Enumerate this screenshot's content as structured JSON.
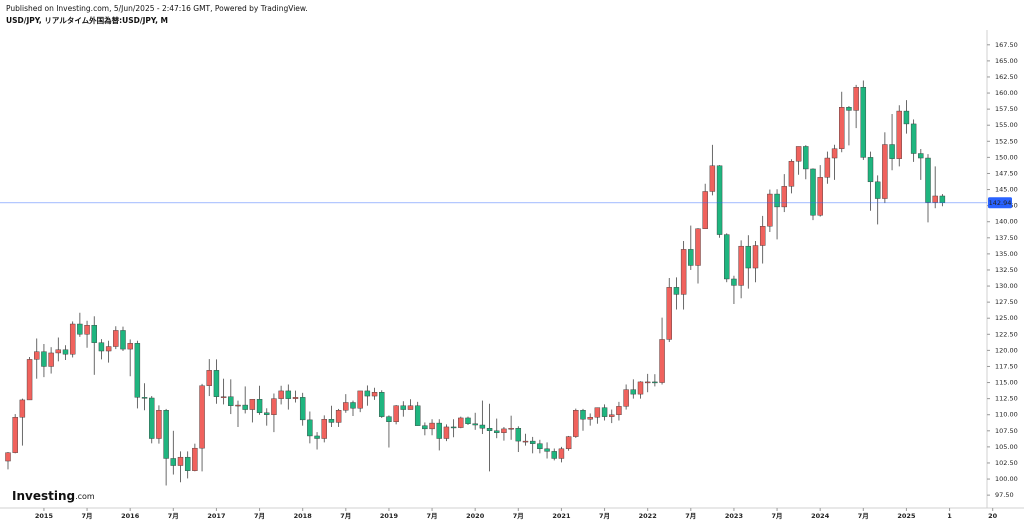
{
  "chart_data": {
    "type": "candlestick",
    "published": "Published on Investing.com, 5/Jun/2025 - 2:47:16 GMT, Powered by TradingView.",
    "title": "USD/JPY, リアルタイム外国為替:USD/JPY, M",
    "logo": "Investing",
    "logo_suffix": ".com",
    "up_color": "#f0625d",
    "down_color": "#1fb57f",
    "wick_color": "#444444",
    "price_line": 142.94,
    "price_line_color": "#2962ff",
    "open": [
      102.8,
      104.1,
      109.6,
      112.3,
      118.6,
      119.8,
      117.5,
      119.6,
      120.1,
      119.4,
      124.1,
      122.5,
      123.9,
      121.2,
      119.9,
      120.6,
      123.1,
      120.2,
      121.1,
      112.7,
      112.6,
      106.3,
      110.7,
      103.2,
      102.1,
      103.4,
      101.3,
      104.8,
      114.5,
      116.9,
      112.8,
      112.8,
      111.4,
      111.5,
      110.8,
      112.4,
      110.3,
      110.0,
      112.5,
      113.7,
      112.5,
      112.7,
      109.2,
      106.7,
      106.3,
      109.3,
      108.8,
      110.7,
      111.9,
      111.0,
      113.7,
      112.9,
      113.5,
      109.7,
      108.9,
      111.4,
      110.8,
      111.4,
      108.3,
      107.8,
      108.7,
      106.3,
      108.1,
      108.0,
      109.5,
      108.6,
      108.4,
      107.9,
      107.5,
      107.2,
      107.8,
      107.9,
      105.9,
      105.9,
      105.5,
      104.7,
      104.3,
      103.2,
      104.7,
      106.6,
      110.7,
      109.3,
      109.6,
      111.1,
      109.7,
      110.0,
      111.3,
      113.9,
      113.2,
      115.1,
      115.1,
      115.0,
      121.7,
      129.8,
      128.7,
      135.7,
      133.2,
      138.9,
      144.7,
      148.7,
      138.0,
      131.1,
      130.1,
      136.2,
      132.8,
      136.3,
      139.3,
      144.3,
      142.3,
      145.5,
      149.4,
      151.7,
      148.2,
      141.0,
      146.9,
      149.9,
      151.35,
      157.8,
      157.3,
      160.9,
      150.0,
      146.2,
      143.6,
      152.0,
      149.8,
      157.2,
      155.2,
      150.6,
      149.9,
      143.0,
      144.0
    ],
    "high": [
      104.2,
      110.1,
      112.5,
      118.98,
      121.85,
      121.0,
      120.5,
      122.0,
      120.8,
      124.5,
      125.85,
      124.6,
      125.3,
      121.75,
      121.5,
      123.75,
      123.7,
      121.7,
      121.5,
      114.9,
      112.9,
      111.45,
      110.9,
      107.5,
      104.3,
      104.3,
      105.5,
      114.8,
      118.65,
      118.6,
      115.6,
      115.5,
      112.2,
      114.4,
      112.4,
      114.5,
      111.0,
      113.3,
      114.5,
      114.7,
      113.75,
      113.4,
      110.5,
      107.3,
      109.9,
      111.4,
      110.9,
      113.2,
      112.2,
      113.7,
      114.55,
      114.2,
      113.8,
      109.9,
      111.5,
      112.1,
      112.4,
      112.0,
      108.8,
      109.3,
      109.3,
      108.5,
      109.3,
      109.7,
      109.7,
      110.3,
      112.2,
      111.7,
      109.4,
      108.1,
      109.85,
      108.2,
      107.05,
      106.55,
      106.1,
      105.7,
      104.75,
      105.0,
      106.7,
      110.95,
      110.9,
      110.2,
      111.1,
      111.6,
      110.8,
      112.0,
      114.7,
      115.5,
      115.2,
      116.35,
      116.3,
      125.1,
      131.25,
      131.35,
      137.0,
      139.4,
      139.0,
      145.9,
      151.95,
      148.8,
      138.2,
      131.6,
      137.1,
      137.9,
      137.0,
      140.9,
      145.0,
      145.05,
      147.4,
      149.7,
      151.7,
      151.9,
      148.3,
      148.8,
      150.9,
      151.97,
      160.2,
      157.99,
      161.27,
      161.95,
      150.9,
      147.2,
      153.9,
      156.75,
      158.1,
      158.9,
      155.9,
      151.3,
      150.5,
      148.6,
      144.3
    ],
    "low": [
      101.5,
      104.0,
      105.2,
      112.3,
      115.6,
      115.85,
      116.4,
      118.3,
      118.5,
      118.9,
      122.1,
      120.4,
      116.2,
      118.6,
      118.1,
      120.2,
      119.9,
      115.98,
      110.98,
      110.7,
      105.55,
      105.5,
      99.0,
      100.7,
      99.5,
      100.1,
      101.2,
      101.2,
      112.9,
      111.7,
      111.6,
      110.1,
      108.1,
      110.2,
      108.8,
      110.0,
      108.3,
      107.3,
      111.6,
      110.8,
      111.9,
      108.3,
      105.55,
      104.6,
      105.7,
      108.1,
      108.1,
      110.3,
      109.8,
      110.4,
      111.4,
      112.3,
      109.5,
      104.9,
      108.5,
      109.7,
      110.8,
      108.3,
      106.8,
      106.8,
      104.45,
      105.9,
      106.5,
      107.9,
      108.4,
      107.65,
      107.0,
      101.2,
      106.35,
      105.98,
      106.1,
      104.2,
      105.2,
      104.0,
      104.0,
      103.2,
      102.9,
      102.6,
      104.4,
      106.4,
      107.5,
      108.3,
      108.6,
      109.1,
      108.7,
      109.1,
      110.8,
      112.5,
      112.5,
      113.5,
      114.4,
      114.7,
      121.3,
      126.35,
      126.35,
      132.5,
      130.4,
      138.9,
      144.1,
      137.5,
      130.6,
      127.2,
      128.1,
      129.6,
      130.6,
      133.5,
      138.4,
      137.25,
      141.5,
      144.4,
      147.3,
      146.6,
      140.25,
      140.8,
      145.9,
      146.5,
      150.8,
      151.86,
      154.55,
      149.6,
      141.7,
      139.58,
      142.9,
      148.0,
      148.6,
      153.7,
      149.3,
      146.5,
      139.9,
      142.1,
      142.4
    ],
    "close": [
      104.1,
      109.6,
      112.3,
      118.6,
      119.8,
      117.5,
      119.6,
      120.1,
      119.4,
      124.1,
      122.5,
      123.9,
      121.2,
      119.9,
      120.6,
      123.1,
      120.2,
      121.1,
      112.7,
      112.6,
      106.3,
      110.7,
      103.2,
      102.1,
      103.4,
      101.3,
      104.8,
      114.5,
      116.9,
      112.8,
      112.8,
      111.4,
      111.5,
      110.8,
      112.4,
      110.3,
      110.0,
      112.5,
      113.7,
      112.5,
      112.7,
      109.2,
      106.7,
      106.3,
      109.3,
      108.8,
      110.7,
      111.9,
      111.0,
      113.7,
      112.9,
      113.5,
      109.7,
      108.9,
      111.4,
      110.8,
      111.4,
      108.3,
      107.8,
      108.7,
      106.3,
      108.1,
      108.0,
      109.5,
      108.6,
      108.4,
      107.9,
      107.5,
      107.2,
      107.8,
      107.9,
      105.9,
      105.9,
      105.5,
      104.7,
      104.3,
      103.2,
      104.7,
      106.6,
      110.7,
      109.3,
      109.6,
      111.1,
      109.7,
      110.0,
      111.3,
      113.9,
      113.2,
      115.1,
      115.1,
      115.0,
      121.7,
      129.8,
      128.7,
      135.7,
      133.2,
      138.9,
      144.7,
      148.7,
      138.0,
      131.1,
      130.1,
      136.2,
      132.8,
      136.3,
      139.3,
      144.3,
      142.3,
      145.5,
      149.4,
      151.7,
      148.2,
      141.0,
      146.9,
      149.9,
      151.35,
      157.8,
      157.3,
      160.9,
      150.0,
      146.2,
      143.6,
      152.0,
      149.8,
      157.2,
      155.2,
      150.6,
      149.9,
      143.0,
      144.0,
      142.94
    ],
    "xlim": [
      -0.5,
      137.6
    ],
    "xticks": [
      {
        "value": 5,
        "label": "2015"
      },
      {
        "value": 11,
        "label": "7月"
      },
      {
        "value": 17,
        "label": "2016"
      },
      {
        "value": 23,
        "label": "7月"
      },
      {
        "value": 29,
        "label": "2017"
      },
      {
        "value": 35,
        "label": "7月"
      },
      {
        "value": 41,
        "label": "2018"
      },
      {
        "value": 47,
        "label": "7月"
      },
      {
        "value": 53,
        "label": "2019"
      },
      {
        "value": 59,
        "label": "7月"
      },
      {
        "value": 65,
        "label": "2020"
      },
      {
        "value": 71,
        "label": "7月"
      },
      {
        "value": 77,
        "label": "2021"
      },
      {
        "value": 83,
        "label": "7月"
      },
      {
        "value": 89,
        "label": "2022"
      },
      {
        "value": 95,
        "label": "7月"
      },
      {
        "value": 101,
        "label": "2023"
      },
      {
        "value": 107,
        "label": "7月"
      },
      {
        "value": 113,
        "label": "2024"
      },
      {
        "value": 119,
        "label": "7月"
      },
      {
        "value": 125,
        "label": "2025"
      },
      {
        "value": 131,
        "label": "1"
      },
      {
        "value": 137,
        "label": "20"
      }
    ],
    "ylim": [
      95.5,
      169.8
    ],
    "yticks": [
      {
        "value": 97.5,
        "label": "97.50"
      },
      {
        "value": 100,
        "label": "100.00"
      },
      {
        "value": 102.5,
        "label": "102.50"
      },
      {
        "value": 105,
        "label": "105.00"
      },
      {
        "value": 107.5,
        "label": "107.50"
      },
      {
        "value": 110,
        "label": "110.00"
      },
      {
        "value": 112.5,
        "label": "112.50"
      },
      {
        "value": 115,
        "label": "115.00"
      },
      {
        "value": 117.5,
        "label": "117.50"
      },
      {
        "value": 120,
        "label": "120.00"
      },
      {
        "value": 122.5,
        "label": "122.50"
      },
      {
        "value": 125,
        "label": "125.00"
      },
      {
        "value": 127.5,
        "label": "127.50"
      },
      {
        "value": 130,
        "label": "130.00"
      },
      {
        "value": 132.5,
        "label": "132.50"
      },
      {
        "value": 135,
        "label": "135.00"
      },
      {
        "value": 137.5,
        "label": "137.50"
      },
      {
        "value": 140,
        "label": "140.00"
      },
      {
        "value": 142.5,
        "label": "142.50"
      },
      {
        "value": 145,
        "label": "145.00"
      },
      {
        "value": 147.5,
        "label": "147.50"
      },
      {
        "value": 150,
        "label": "150.00"
      },
      {
        "value": 152.5,
        "label": "152.50"
      },
      {
        "value": 155,
        "label": "155.00"
      },
      {
        "value": 157.5,
        "label": "157.50"
      },
      {
        "value": 160,
        "label": "160.00"
      },
      {
        "value": 162.5,
        "label": "162.50"
      },
      {
        "value": 165,
        "label": "165.00"
      },
      {
        "value": 167.5,
        "label": "167.50"
      }
    ],
    "grid": false
  }
}
